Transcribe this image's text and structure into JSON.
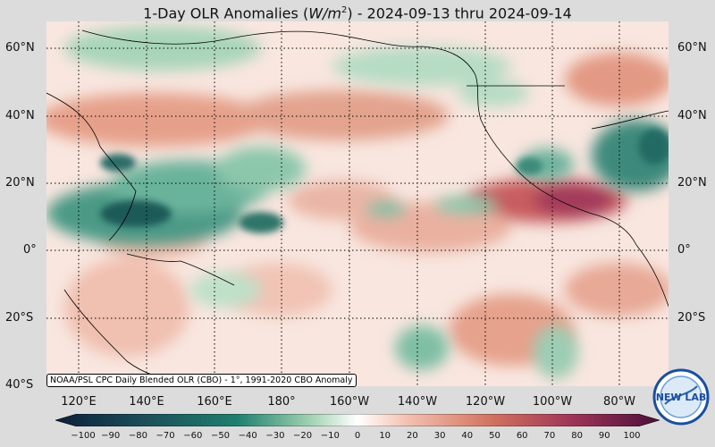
{
  "title": {
    "prefix": "1-Day OLR Anomalies (",
    "unit_base": "W/m",
    "unit_exp": "2",
    "suffix": ") - 2024-09-13 thru 2024-09-14"
  },
  "credit": "NOAA/PSL CPC Daily Blended OLR (CBO) - 1°, 1991-2020 CBO Anomaly",
  "lat_labels": [
    "60°N",
    "40°N",
    "20°N",
    "0°",
    "20°S",
    "40°S"
  ],
  "lon_labels": [
    "120°E",
    "140°E",
    "160°E",
    "180°",
    "160°W",
    "140°W",
    "120°W",
    "100°W",
    "80°W"
  ],
  "colorbar_ticks": [
    "−100",
    "−90",
    "−80",
    "−70",
    "−60",
    "−50",
    "−40",
    "−30",
    "−20",
    "−10",
    "0",
    "10",
    "20",
    "30",
    "40",
    "50",
    "60",
    "70",
    "80",
    "90",
    "100"
  ],
  "colorbar_colors": {
    "strong_negative": "#0b1f3a",
    "negative": "#1e7f6f",
    "weak_negative": "#9fd1b0",
    "neutral": "#ffffff",
    "weak_positive": "#f4c2b2",
    "positive": "#d27460",
    "strong_positive": "#4a0f3a"
  },
  "logo": {
    "text": "NEW LAB",
    "ring_color": "#1a4fa0"
  }
}
